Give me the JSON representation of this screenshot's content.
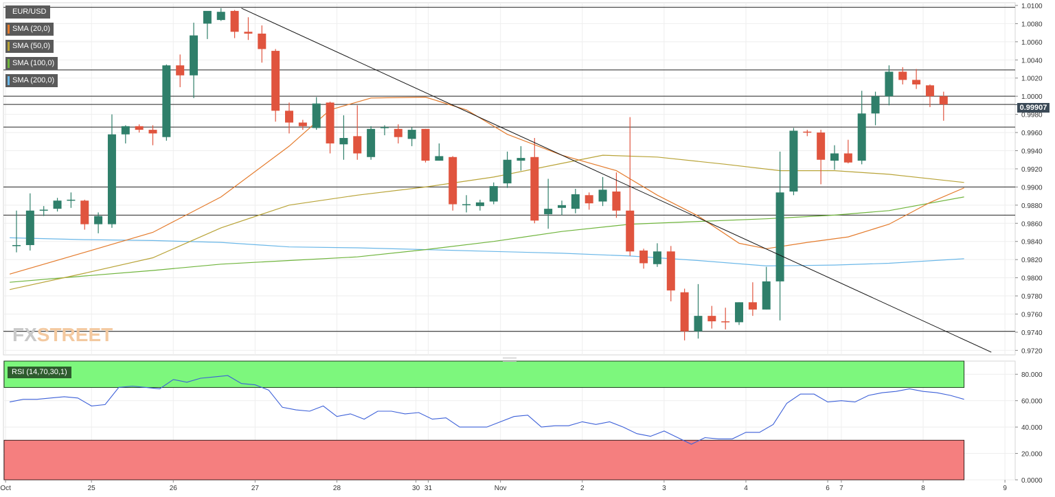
{
  "chart_data": {
    "type": "candlestick",
    "symbol": "EUR/USD",
    "ylim": [
      0.9715,
      1.0103
    ],
    "y_ticks": [
      "1.0100",
      "1.0080",
      "1.0060",
      "1.0040",
      "1.0020",
      "1.0000",
      "0.9980",
      "0.9960",
      "0.9940",
      "0.9920",
      "0.9900",
      "0.9880",
      "0.9860",
      "0.9840",
      "0.9820",
      "0.9800",
      "0.9780",
      "0.9760",
      "0.9740",
      "0.9720"
    ],
    "x_ticks": [
      {
        "label": "Oct",
        "i": -0.8
      },
      {
        "label": "25",
        "i": 5.5
      },
      {
        "label": "26",
        "i": 11.5
      },
      {
        "label": "27",
        "i": 17.5
      },
      {
        "label": "28",
        "i": 23.5
      },
      {
        "label": "30",
        "i": 29.3
      },
      {
        "label": "31",
        "i": 30.2
      },
      {
        "label": "Nov",
        "i": 35.5
      },
      {
        "label": "2",
        "i": 41.5
      },
      {
        "label": "3",
        "i": 47.5
      },
      {
        "label": "4",
        "i": 53.5
      },
      {
        "label": "6",
        "i": 59.5
      },
      {
        "label": "7",
        "i": 60.5
      },
      {
        "label": "8",
        "i": 66.5
      },
      {
        "label": "9",
        "i": 72.5
      }
    ],
    "last_price": "0.99907",
    "candles": [
      [
        0.9835,
        0.9874,
        0.9828,
        0.9836
      ],
      [
        0.9836,
        0.9893,
        0.983,
        0.9874
      ],
      [
        0.9874,
        0.9879,
        0.9868,
        0.9875
      ],
      [
        0.9876,
        0.9888,
        0.9873,
        0.9885
      ],
      [
        0.9885,
        0.9894,
        0.9877,
        0.9886
      ],
      [
        0.9885,
        0.9886,
        0.9853,
        0.9859
      ],
      [
        0.9859,
        0.9872,
        0.9849,
        0.9868
      ],
      [
        0.9859,
        0.998,
        0.9855,
        0.9958
      ],
      [
        0.9958,
        0.9968,
        0.9948,
        0.9967
      ],
      [
        0.9967,
        0.9969,
        0.996,
        0.9963
      ],
      [
        0.9963,
        0.9968,
        0.9946,
        0.9959
      ],
      [
        0.9955,
        1.0035,
        0.9951,
        1.0034
      ],
      [
        1.0034,
        1.0046,
        1.001,
        1.0023
      ],
      [
        1.0023,
        1.0081,
        0.9998,
        1.0067
      ],
      [
        1.008,
        1.0092,
        1.0063,
        1.0094
      ],
      [
        1.0084,
        1.0097,
        1.0083,
        1.0093
      ],
      [
        1.0094,
        1.0095,
        1.0064,
        1.0071
      ],
      [
        1.0071,
        1.0087,
        1.0062,
        1.0069
      ],
      [
        1.0069,
        1.0078,
        1.0037,
        1.0052
      ],
      [
        1.005,
        1.0052,
        0.9972,
        0.9984
      ],
      [
        0.9984,
        0.9993,
        0.9959,
        0.9971
      ],
      [
        0.9971,
        0.9974,
        0.9963,
        0.9967
      ],
      [
        0.9965,
        0.9999,
        0.9963,
        0.9992
      ],
      [
        0.9993,
        0.9994,
        0.9937,
        0.9948
      ],
      [
        0.9947,
        0.9979,
        0.993,
        0.9954
      ],
      [
        0.9956,
        0.999,
        0.993,
        0.9937
      ],
      [
        0.9933,
        0.9967,
        0.993,
        0.9964
      ],
      [
        0.9966,
        0.9968,
        0.9957,
        0.9966
      ],
      [
        0.9964,
        0.9969,
        0.9948,
        0.9955
      ],
      [
        0.9953,
        0.9966,
        0.9945,
        0.9963
      ],
      [
        0.9964,
        0.9964,
        0.9927,
        0.9929
      ],
      [
        0.9929,
        0.9948,
        0.9929,
        0.9934
      ],
      [
        0.9933,
        0.9934,
        0.9874,
        0.9881
      ],
      [
        0.9881,
        0.9891,
        0.9872,
        0.9881
      ],
      [
        0.9879,
        0.9886,
        0.9874,
        0.9883
      ],
      [
        0.9884,
        0.9905,
        0.9881,
        0.9901
      ],
      [
        0.9904,
        0.9939,
        0.9899,
        0.993
      ],
      [
        0.9929,
        0.9945,
        0.9918,
        0.9932
      ],
      [
        0.9933,
        0.9954,
        0.986,
        0.9863
      ],
      [
        0.987,
        0.9909,
        0.9854,
        0.9876
      ],
      [
        0.9877,
        0.9885,
        0.9869,
        0.988
      ],
      [
        0.9876,
        0.9898,
        0.9871,
        0.9892
      ],
      [
        0.9891,
        0.9894,
        0.9875,
        0.9882
      ],
      [
        0.9884,
        0.9911,
        0.9879,
        0.9897
      ],
      [
        0.9895,
        0.9916,
        0.9866,
        0.9874
      ],
      [
        0.9874,
        0.9977,
        0.9824,
        0.9829
      ],
      [
        0.983,
        0.9832,
        0.981,
        0.9816
      ],
      [
        0.9815,
        0.9838,
        0.9812,
        0.9829
      ],
      [
        0.9829,
        0.9835,
        0.9774,
        0.9786
      ],
      [
        0.9784,
        0.9788,
        0.9731,
        0.9741
      ],
      [
        0.9741,
        0.9793,
        0.9733,
        0.9758
      ],
      [
        0.9758,
        0.9769,
        0.9744,
        0.9752
      ],
      [
        0.9752,
        0.9767,
        0.9743,
        0.9751
      ],
      [
        0.9751,
        0.9773,
        0.9748,
        0.9773
      ],
      [
        0.9773,
        0.9795,
        0.9758,
        0.9765
      ],
      [
        0.9765,
        0.9812,
        0.9765,
        0.9796
      ],
      [
        0.9796,
        0.9939,
        0.9753,
        0.9894
      ],
      [
        0.9895,
        0.9965,
        0.9891,
        0.9962
      ],
      [
        0.9961,
        0.9963,
        0.9956,
        0.996
      ],
      [
        0.996,
        0.9963,
        0.9903,
        0.993
      ],
      [
        0.9929,
        0.9946,
        0.9919,
        0.9937
      ],
      [
        0.9937,
        0.9952,
        0.9926,
        0.9927
      ],
      [
        0.9929,
        1.0006,
        0.9925,
        0.9981
      ],
      [
        0.9981,
        1.0005,
        0.9968,
        1.0
      ],
      [
        1.0,
        1.0034,
        0.999,
        1.0027
      ],
      [
        1.0027,
        1.0032,
        1.0013,
        1.0018
      ],
      [
        1.0018,
        1.003,
        1.0008,
        1.0013
      ],
      [
        1.0012,
        1.0013,
        0.9988,
        1.0
      ],
      [
        1.0,
        1.0005,
        0.9973,
        0.9991
      ]
    ],
    "sma20": [
      [
        -0.5,
        0.9804
      ],
      [
        5,
        0.9828
      ],
      [
        10,
        0.985
      ],
      [
        15,
        0.9889
      ],
      [
        20,
        0.9945
      ],
      [
        23,
        0.9985
      ],
      [
        26,
        0.9998
      ],
      [
        30,
        0.9999
      ],
      [
        33,
        0.9985
      ],
      [
        36,
        0.9958
      ],
      [
        40,
        0.9935
      ],
      [
        44,
        0.9918
      ],
      [
        47,
        0.9891
      ],
      [
        50,
        0.9868
      ],
      [
        53,
        0.9838
      ],
      [
        55,
        0.9832
      ],
      [
        58,
        0.9839
      ],
      [
        61,
        0.9845
      ],
      [
        64,
        0.9859
      ],
      [
        67,
        0.9883
      ],
      [
        69.5,
        0.9899
      ]
    ],
    "sma50": [
      [
        -0.5,
        0.9787
      ],
      [
        5,
        0.9805
      ],
      [
        10,
        0.9822
      ],
      [
        15,
        0.9855
      ],
      [
        20,
        0.988
      ],
      [
        25,
        0.9891
      ],
      [
        30,
        0.99
      ],
      [
        35,
        0.9911
      ],
      [
        40,
        0.9926
      ],
      [
        43,
        0.9935
      ],
      [
        47,
        0.9933
      ],
      [
        52,
        0.9925
      ],
      [
        56,
        0.9918
      ],
      [
        60,
        0.9918
      ],
      [
        64,
        0.9914
      ],
      [
        69.5,
        0.9905
      ]
    ],
    "sma100": [
      [
        -0.5,
        0.9795
      ],
      [
        5,
        0.9802
      ],
      [
        10,
        0.9808
      ],
      [
        15,
        0.9815
      ],
      [
        20,
        0.9819
      ],
      [
        25,
        0.9823
      ],
      [
        30,
        0.9831
      ],
      [
        35,
        0.984
      ],
      [
        40,
        0.9851
      ],
      [
        45,
        0.9859
      ],
      [
        50,
        0.9862
      ],
      [
        55,
        0.9865
      ],
      [
        60,
        0.9869
      ],
      [
        64,
        0.9874
      ],
      [
        69.5,
        0.9889
      ]
    ],
    "sma200": [
      [
        -0.5,
        0.9844
      ],
      [
        5,
        0.9842
      ],
      [
        10,
        0.9841
      ],
      [
        15,
        0.9839
      ],
      [
        20,
        0.9834
      ],
      [
        25,
        0.9833
      ],
      [
        30,
        0.9831
      ],
      [
        35,
        0.9829
      ],
      [
        40,
        0.9827
      ],
      [
        45,
        0.9824
      ],
      [
        50,
        0.9819
      ],
      [
        55,
        0.9813
      ],
      [
        60,
        0.9814
      ],
      [
        64,
        0.9816
      ],
      [
        69.5,
        0.9821
      ]
    ],
    "horizontal_levels": [
      1.0098,
      1.0029,
      1.0,
      0.9991,
      0.9966,
      0.99,
      0.9869,
      0.9741
    ],
    "trendline": [
      [
        16.5,
        1.0097
      ],
      [
        71.5,
        0.9718
      ]
    ],
    "rsi": {
      "label": "RSI (14,70,30,1)",
      "overbought": 70,
      "oversold": 30,
      "y_ticks": [
        "80.000",
        "60.000",
        "40.000",
        "20.000",
        "0.0000"
      ],
      "ylim": [
        0,
        90
      ],
      "values": [
        [
          -0.5,
          59
        ],
        [
          0.5,
          61
        ],
        [
          1.5,
          61
        ],
        [
          2.5,
          62
        ],
        [
          3.5,
          63
        ],
        [
          4.5,
          62
        ],
        [
          5.5,
          56
        ],
        [
          6.5,
          57
        ],
        [
          7.5,
          70
        ],
        [
          8.5,
          71
        ],
        [
          9.5,
          70
        ],
        [
          10.5,
          69
        ],
        [
          11.5,
          76
        ],
        [
          12.5,
          74
        ],
        [
          13.5,
          77
        ],
        [
          14.5,
          78
        ],
        [
          15.5,
          79
        ],
        [
          16.5,
          73
        ],
        [
          17.5,
          72
        ],
        [
          18.5,
          68
        ],
        [
          19.5,
          55
        ],
        [
          20.5,
          53
        ],
        [
          21.5,
          52
        ],
        [
          22.5,
          56
        ],
        [
          23.5,
          48
        ],
        [
          24.5,
          50
        ],
        [
          25.5,
          46
        ],
        [
          26.5,
          52
        ],
        [
          27.5,
          52
        ],
        [
          28.5,
          50
        ],
        [
          29.5,
          51
        ],
        [
          30.5,
          46
        ],
        [
          31.5,
          47
        ],
        [
          32.5,
          40
        ],
        [
          33.5,
          40
        ],
        [
          34.5,
          40
        ],
        [
          35.5,
          44
        ],
        [
          36.5,
          48
        ],
        [
          37.5,
          49
        ],
        [
          38.5,
          40
        ],
        [
          39.5,
          41
        ],
        [
          40.5,
          41
        ],
        [
          41.5,
          44
        ],
        [
          42.5,
          42
        ],
        [
          43.5,
          44
        ],
        [
          44.5,
          40
        ],
        [
          45.5,
          35
        ],
        [
          46.5,
          33
        ],
        [
          47.5,
          37
        ],
        [
          48.5,
          32
        ],
        [
          49.5,
          27
        ],
        [
          50.5,
          32
        ],
        [
          51.5,
          31
        ],
        [
          52.5,
          31
        ],
        [
          53.5,
          36
        ],
        [
          54.5,
          36
        ],
        [
          55.5,
          42
        ],
        [
          56.5,
          58
        ],
        [
          57.5,
          65
        ],
        [
          58.5,
          65
        ],
        [
          59.5,
          59
        ],
        [
          60.5,
          60
        ],
        [
          61.5,
          59
        ],
        [
          62.5,
          64
        ],
        [
          63.5,
          66
        ],
        [
          64.5,
          67
        ],
        [
          65.5,
          69
        ],
        [
          66.5,
          67
        ],
        [
          67.5,
          66
        ],
        [
          68.5,
          64
        ],
        [
          69.5,
          61
        ]
      ]
    },
    "legend": [
      "EUR/USD",
      "SMA (20,0)",
      "SMA (50,0)",
      "SMA (100,0)",
      "SMA (200,0)"
    ],
    "watermark": {
      "part1": "FX",
      "part2": "STREET"
    }
  },
  "colors": {
    "up": "#2f7f6a",
    "down": "#e0543e",
    "sma20": "#e47b2c",
    "sma50": "#b8a337",
    "sma100": "#6fb43c",
    "sma200": "#6ab7e8",
    "rsi_line": "#3b5fd8",
    "overbought_fill": "#7df77d",
    "oversold_fill": "#f57f7f"
  }
}
